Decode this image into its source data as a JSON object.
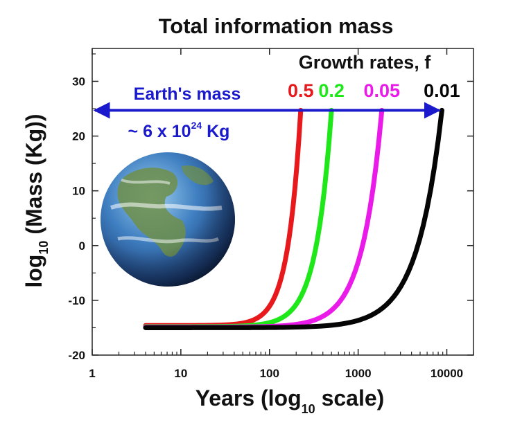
{
  "chart_data": {
    "type": "line",
    "title": "Total information mass",
    "xlabel_main": "Years (log",
    "xlabel_sub": "10",
    "xlabel_end": " scale)",
    "ylabel_main": "log",
    "ylabel_sub": "10",
    "ylabel_end": " (Mass (Kg))",
    "x_scale": "log",
    "xlim": [
      1,
      20000
    ],
    "ylim": [
      -20,
      36
    ],
    "x_ticks": [
      1,
      10,
      100,
      1000,
      10000
    ],
    "x_tick_labels": [
      "1",
      "10",
      "100",
      "1000",
      "10000"
    ],
    "y_ticks": [
      -20,
      -10,
      0,
      10,
      20,
      30
    ],
    "y_tick_labels": [
      "-20",
      "-10",
      "0",
      "10",
      "20",
      "30"
    ],
    "legend_title": "Growth rates, f",
    "series": [
      {
        "name": "0.5",
        "color": "#e8191d",
        "x_start": 4,
        "x_end": 225,
        "y_start": -14.6,
        "y_end": 24.7
      },
      {
        "name": "0.2",
        "color": "#1ee81a",
        "x_start": 4,
        "x_end": 500,
        "y_start": -14.8,
        "y_end": 24.7
      },
      {
        "name": "0.05",
        "color": "#ea1be8",
        "x_start": 4,
        "x_end": 1850,
        "y_start": -14.9,
        "y_end": 24.7
      },
      {
        "name": "0.01",
        "color": "#050505",
        "x_start": 4,
        "x_end": 8800,
        "y_start": -15.0,
        "y_end": 24.7
      }
    ],
    "earth_mass_line": {
      "label": "Earth's mass",
      "value_prefix": "~ 6 x 10",
      "value_exp": "24",
      "value_suffix": " Kg",
      "y": 24.7,
      "x_from": 1,
      "x_to": 8800,
      "color": "#1a1acc"
    }
  },
  "earth_icon": "earth-globe-icon"
}
